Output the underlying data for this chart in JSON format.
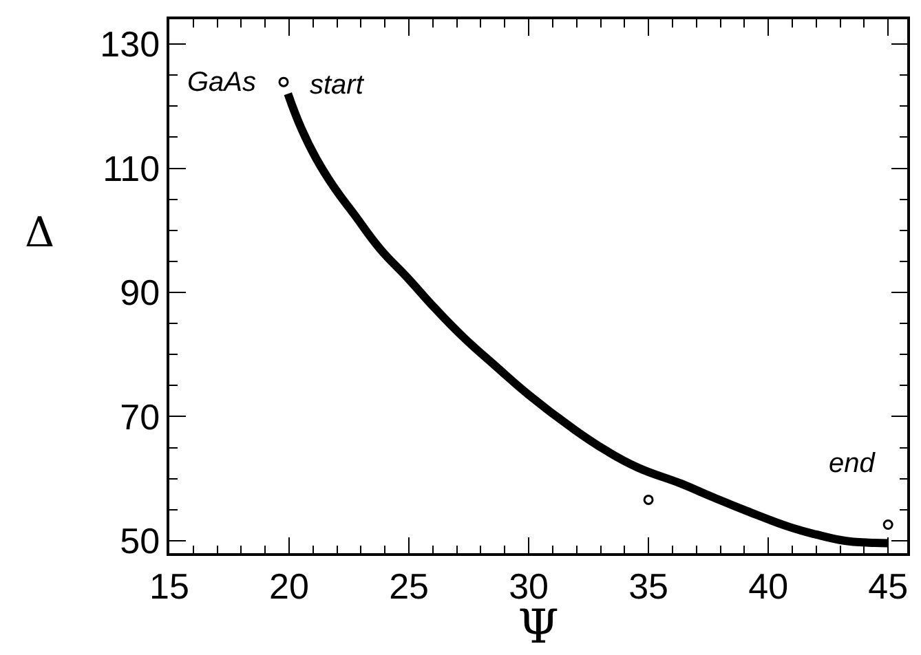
{
  "chart_data": {
    "type": "line",
    "xlabel": "Ψ",
    "ylabel": "Δ",
    "xlim": [
      15,
      45.8
    ],
    "xticks": [
      15,
      20,
      25,
      30,
      35,
      40,
      45
    ],
    "ylim": [
      48,
      134
    ],
    "yticks": [
      50,
      70,
      90,
      110,
      130
    ],
    "grid": false,
    "series": [
      {
        "color": "#000000",
        "line_style": "solid",
        "marker": "none",
        "x": [
          19.95,
          20.5,
          21.14,
          21.9,
          22.73,
          23.8,
          24.93,
          26.1,
          27.27,
          28.6,
          30.0,
          31.8,
          33.2,
          34.55,
          36.36,
          37.7,
          39.1,
          40.9,
          42.0,
          43.2,
          44.2,
          45.0
        ],
        "values": [
          122.0,
          116.5,
          111.5,
          106.8,
          102.5,
          97.0,
          92.4,
          87.4,
          82.8,
          78.2,
          73.5,
          68.2,
          64.6,
          61.8,
          59.2,
          57.0,
          54.8,
          52.2,
          51.0,
          50.0,
          49.7,
          49.6
        ]
      },
      {
        "type": "scatter",
        "color": "#000000",
        "marker": "circle",
        "x": [
          19.77,
          35.0,
          45.0
        ],
        "values": [
          123.9,
          56.6,
          52.6
        ]
      }
    ],
    "annotations": [
      "GaAs",
      "start",
      "end"
    ]
  }
}
